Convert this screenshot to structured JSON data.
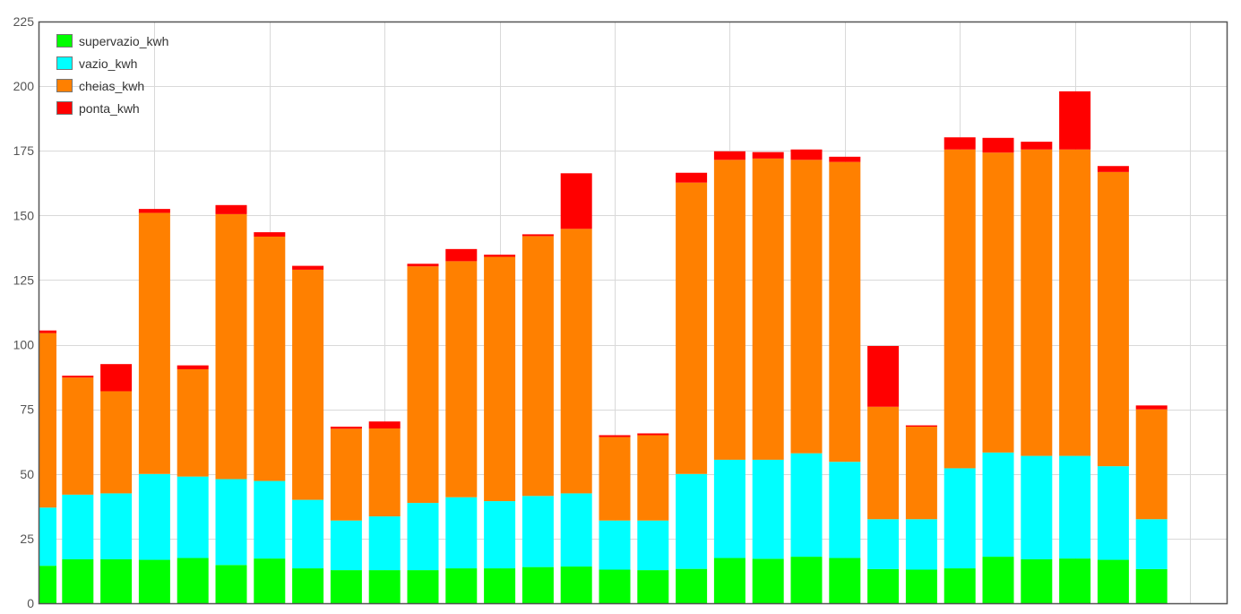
{
  "chart_data": {
    "type": "bar",
    "stacked": true,
    "ylim": [
      0,
      225
    ],
    "yticks": [
      0,
      25,
      50,
      75,
      100,
      125,
      150,
      175,
      200,
      225
    ],
    "grid": true,
    "legend_position": "top-left",
    "series": [
      {
        "name": "supervazio_kwh",
        "color": "#00ff00",
        "values": [
          14.5,
          17,
          17,
          16.8,
          17.5,
          14.8,
          17.3,
          13.5,
          12.8,
          12.8,
          12.8,
          13.5,
          13.5,
          14,
          14.2,
          13,
          12.8,
          13.3,
          17.5,
          17.2,
          18,
          17.5,
          13.2,
          13,
          13.5,
          18,
          17,
          17.3,
          16.8,
          13.2
        ]
      },
      {
        "name": "vazio_kwh",
        "color": "#00ffff",
        "values": [
          22.5,
          25,
          25.5,
          33.2,
          31.5,
          33.2,
          30,
          26.5,
          19.2,
          20.8,
          26,
          27.5,
          26,
          27.5,
          28.3,
          19,
          19.2,
          36.7,
          38,
          38.3,
          40,
          37.2,
          19.3,
          19.5,
          38.7,
          40.3,
          40,
          39.7,
          36.2,
          19.3
        ]
      },
      {
        "name": "cheias_kwh",
        "color": "#ff8000",
        "values": [
          67.5,
          45.3,
          39.5,
          101,
          41.5,
          102.5,
          94.5,
          89,
          35.5,
          34,
          91.5,
          91.3,
          94.5,
          100.5,
          102.3,
          32.3,
          33,
          112.7,
          116,
          116.5,
          113.5,
          116,
          43.5,
          35.8,
          123.3,
          116,
          118.5,
          118.5,
          113.8,
          42.5
        ]
      },
      {
        "name": "ponta_kwh",
        "color": "#ff0000",
        "values": [
          1,
          0.7,
          10.5,
          1.5,
          1.5,
          3.5,
          1.7,
          1.5,
          0.8,
          2.7,
          1,
          4.7,
          0.8,
          0.7,
          21.5,
          0.7,
          0.7,
          3.8,
          3.3,
          2.5,
          4,
          2,
          23.5,
          0.5,
          4.7,
          5.7,
          3,
          22.5,
          2.3,
          1.5
        ]
      }
    ]
  }
}
